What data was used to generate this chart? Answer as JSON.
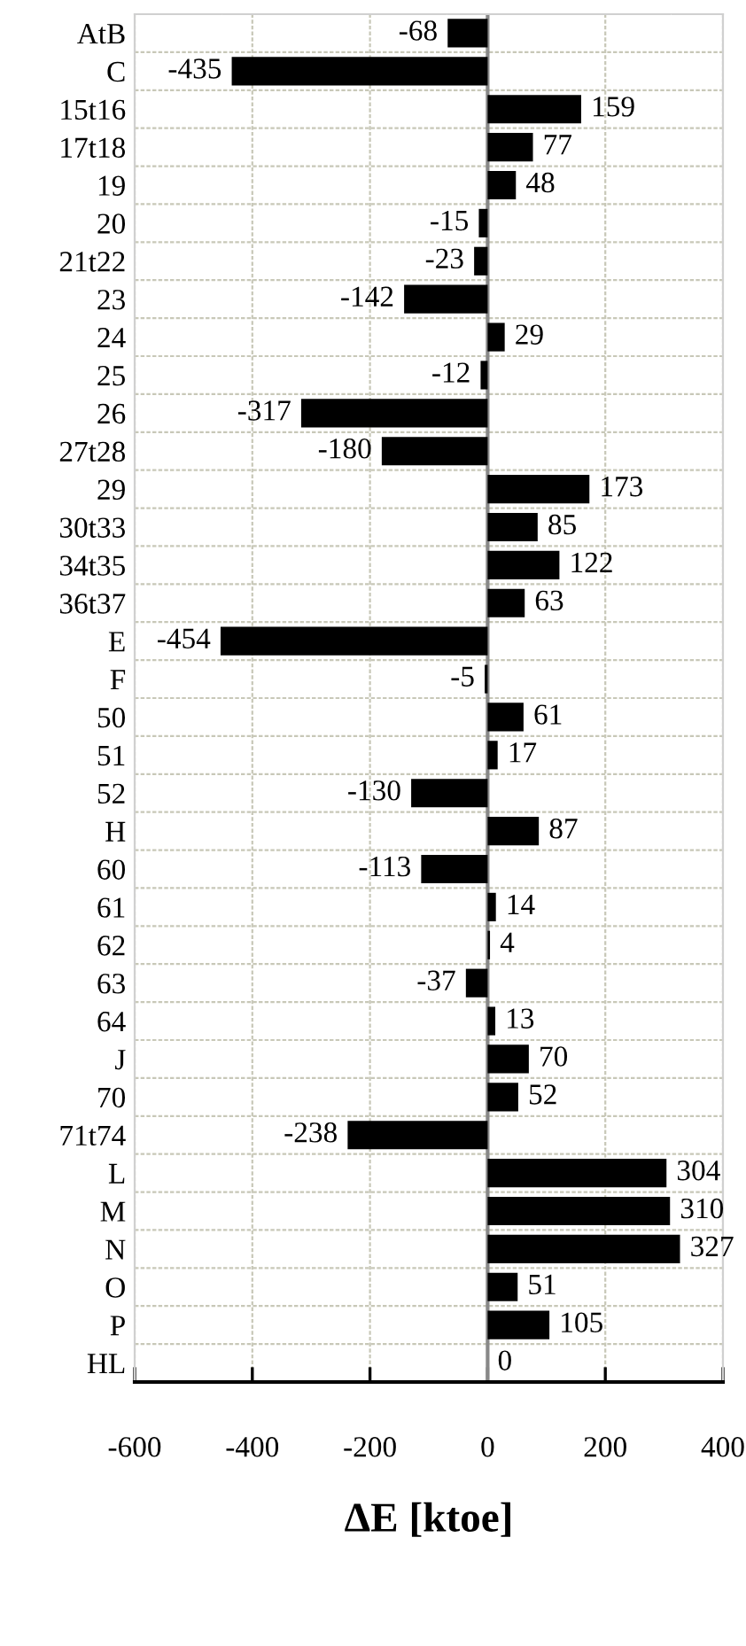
{
  "chart_data": {
    "type": "bar",
    "orientation": "horizontal",
    "xlabel": "ΔE [ktoe]",
    "categories": [
      "AtB",
      "C",
      "15t16",
      "17t18",
      "19",
      "20",
      "21t22",
      "23",
      "24",
      "25",
      "26",
      "27t28",
      "29",
      "30t33",
      "34t35",
      "36t37",
      "E",
      "F",
      "50",
      "51",
      "52",
      "H",
      "60",
      "61",
      "62",
      "63",
      "64",
      "J",
      "70",
      "71t74",
      "L",
      "M",
      "N",
      "O",
      "P",
      "HL"
    ],
    "values": [
      -68,
      -435,
      159,
      77,
      48,
      -15,
      -23,
      -142,
      29,
      -12,
      -317,
      -180,
      173,
      85,
      122,
      63,
      -454,
      -5,
      61,
      17,
      -130,
      87,
      -113,
      14,
      4,
      -37,
      13,
      70,
      52,
      -238,
      304,
      310,
      327,
      51,
      105,
      0
    ],
    "value_labels": [
      "-68",
      "-435",
      "159",
      "77",
      "48",
      "-15",
      "-23",
      "-142",
      "29",
      "-12",
      "-317",
      "-180",
      "173",
      "85",
      "122",
      "63",
      "-454",
      "-5",
      "61",
      "17",
      "-130",
      "87",
      "-113",
      "14",
      "4",
      "-37",
      "13",
      "70",
      "52",
      "-238",
      "304",
      "310",
      "327",
      "51",
      "105",
      "0"
    ],
    "color": "#000000",
    "xlim": [
      -600,
      400
    ],
    "xticks": [
      {
        "value": -600,
        "label": "-600"
      },
      {
        "value": -400,
        "label": "-400"
      },
      {
        "value": -200,
        "label": "-200"
      },
      0,
      200,
      400
    ],
    "grid": true
  }
}
